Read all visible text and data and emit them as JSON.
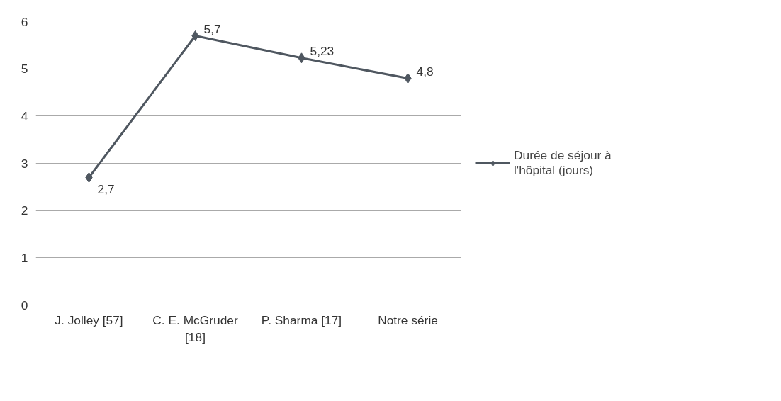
{
  "chart_data": {
    "type": "line",
    "categories": [
      "J. Jolley [57]",
      "C. E. McGruder [18]",
      "P. Sharma [17]",
      "Notre série"
    ],
    "series": [
      {
        "name": "Durée de séjour à l'hôpital (jours)",
        "color": "#4f5760",
        "values": [
          2.7,
          5.7,
          5.23,
          4.8
        ],
        "value_labels": [
          "2,7",
          "5,7",
          "5,23",
          "4,8"
        ]
      }
    ],
    "ylim": [
      0,
      6
    ],
    "yticks": [
      0,
      1,
      2,
      3,
      4,
      5,
      6
    ],
    "grid": "y",
    "legend": "right",
    "marker": "diamond",
    "line_style": "solid"
  }
}
